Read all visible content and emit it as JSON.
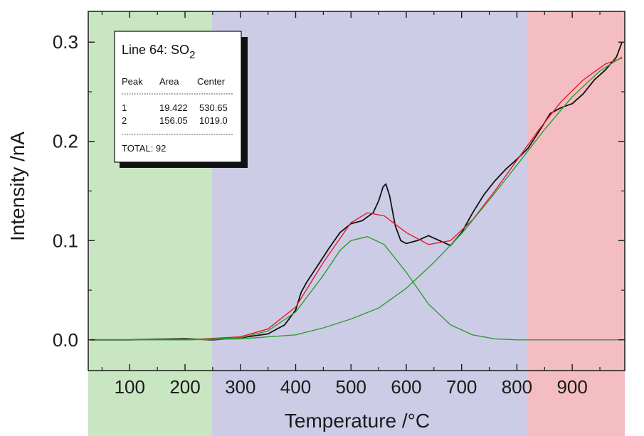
{
  "chart_data": {
    "type": "line",
    "xlabel": "Temperature  /°C",
    "ylabel": "Intensity  /nA",
    "xlim": [
      25,
      995
    ],
    "ylim": [
      -0.031,
      0.331
    ],
    "xticks": [
      100,
      200,
      300,
      400,
      500,
      600,
      700,
      800,
      900
    ],
    "xtick_labels": [
      "100",
      "200",
      "300",
      "400",
      "500",
      "600",
      "700",
      "800",
      "900"
    ],
    "yticks": [
      0.0,
      0.1,
      0.2,
      0.3
    ],
    "ytick_labels": [
      "0.0",
      "0.1",
      "0.2",
      "0.3"
    ],
    "grid": false,
    "regions": [
      {
        "x": [
          25,
          248
        ],
        "color": "#c8e6c2"
      },
      {
        "x": [
          248,
          818
        ],
        "color": "#cdcce6"
      },
      {
        "x": [
          818,
          995
        ],
        "color": "#f4bdc2"
      }
    ],
    "series": [
      {
        "color": "#111111",
        "x": [
          30,
          100,
          200,
          250,
          300,
          350,
          380,
          400,
          410,
          420,
          440,
          460,
          480,
          500,
          520,
          540,
          550,
          558,
          563,
          570,
          580,
          590,
          600,
          620,
          640,
          660,
          680,
          700,
          720,
          740,
          760,
          780,
          800,
          820,
          840,
          860,
          880,
          900,
          920,
          940,
          960,
          980,
          990
        ],
        "y": [
          0.0,
          0.0,
          0.001,
          0.0,
          0.002,
          0.006,
          0.015,
          0.03,
          0.048,
          0.058,
          0.075,
          0.092,
          0.108,
          0.117,
          0.12,
          0.128,
          0.14,
          0.154,
          0.157,
          0.145,
          0.115,
          0.1,
          0.097,
          0.1,
          0.105,
          0.1,
          0.095,
          0.108,
          0.128,
          0.146,
          0.16,
          0.172,
          0.182,
          0.193,
          0.21,
          0.228,
          0.234,
          0.238,
          0.248,
          0.262,
          0.272,
          0.285,
          0.3
        ]
      },
      {
        "color": "#e8192c",
        "x": [
          30,
          100,
          200,
          300,
          350,
          400,
          450,
          500,
          530,
          560,
          600,
          640,
          680,
          720,
          760,
          800,
          840,
          880,
          920,
          960,
          990
        ],
        "y": [
          0.0,
          0.0,
          0.0,
          0.003,
          0.011,
          0.033,
          0.078,
          0.118,
          0.128,
          0.125,
          0.108,
          0.096,
          0.1,
          0.121,
          0.15,
          0.181,
          0.212,
          0.24,
          0.262,
          0.278,
          0.284
        ]
      },
      {
        "color": "#2e9d2e",
        "x": [
          30,
          100,
          200,
          300,
          350,
          400,
          450,
          480,
          500,
          530,
          560,
          600,
          640,
          680,
          720,
          760,
          800,
          850,
          900,
          990
        ],
        "y": [
          0.0,
          0.0,
          0.0,
          0.002,
          0.009,
          0.028,
          0.065,
          0.09,
          0.1,
          0.104,
          0.096,
          0.068,
          0.036,
          0.015,
          0.005,
          0.001,
          0.0,
          0.0,
          0.0,
          0.0
        ]
      },
      {
        "color": "#2e9d2e",
        "x": [
          30,
          200,
          300,
          400,
          450,
          500,
          550,
          600,
          650,
          700,
          750,
          800,
          850,
          900,
          950,
          990
        ],
        "y": [
          0.0,
          0.0,
          0.001,
          0.005,
          0.012,
          0.021,
          0.032,
          0.052,
          0.078,
          0.107,
          0.141,
          0.176,
          0.212,
          0.245,
          0.271,
          0.285
        ]
      }
    ]
  },
  "legend": {
    "title_prefix": "Line 64: SO",
    "title_sub": "2",
    "headers": [
      "Peak",
      "Area",
      "Center"
    ],
    "dashes": "--------------------------------------------",
    "rows": [
      [
        "1",
        "19.422",
        "530.65"
      ],
      [
        "2",
        "156.05",
        "1019.0"
      ]
    ],
    "total": "TOTAL: 92"
  },
  "colors": {
    "axis": "#1a1a1a",
    "legend_shadow": "#111111",
    "legend_box": "#ffffff"
  }
}
